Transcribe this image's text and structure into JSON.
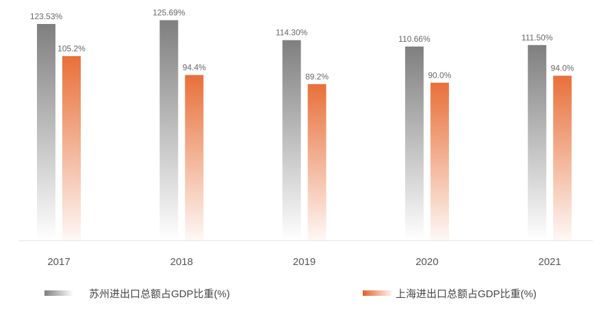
{
  "chart_data": {
    "type": "bar",
    "categories": [
      "2017",
      "2018",
      "2019",
      "2020",
      "2021"
    ],
    "series": [
      {
        "name": "苏州进出口总额占GDP比重(%)",
        "values": [
          123.53,
          125.69,
          114.3,
          110.66,
          111.5
        ],
        "labels": [
          "123.53%",
          "125.69%",
          "114.30%",
          "110.66%",
          "111.50%"
        ],
        "color": "#7f7f7f"
      },
      {
        "name": "上海进出口总额占GDP比重(%)",
        "values": [
          105.2,
          94.4,
          89.2,
          90.0,
          94.0
        ],
        "labels": [
          "105.2%",
          "94.4%",
          "89.2%",
          "90.0%",
          "94.0%"
        ],
        "color": "#e8703a"
      }
    ],
    "ylim": [
      0,
      130
    ],
    "grid": false,
    "legend": "bottom",
    "bar_fill": "vertical gradient fading to white at base"
  }
}
